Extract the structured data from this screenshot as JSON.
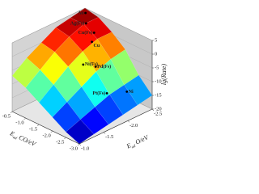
{
  "chart_data": {
    "type": "surface3d",
    "z_label": "lg(Rate)",
    "co_label": {
      "main": "E",
      "sub": "ad",
      "rest": " CO/eV"
    },
    "o_label": {
      "main": "E",
      "sub": "ad",
      "rest": " O/eV"
    },
    "co_lim": [
      -3.0,
      -0.5
    ],
    "o_lim": [
      -1.0,
      -2.5
    ],
    "zlim": [
      -20,
      5
    ],
    "co_ticks": [
      -0.5,
      {
        "value": -1,
        "label": "-1.0"
      },
      -1.5,
      {
        "value": -2,
        "label": "-2.0"
      },
      -2.5,
      {
        "value": -3,
        "label": "-3.0"
      }
    ],
    "o_ticks": [
      {
        "value": -1,
        "label": "-1.0"
      },
      -1.5,
      {
        "value": -2,
        "label": "-2.0"
      },
      -2.5
    ],
    "zticks": [
      5,
      0,
      -5,
      -10,
      -15,
      -20
    ],
    "co_grid": [
      -3.0,
      -2.5,
      -2.0,
      -1.5,
      -1.0,
      -0.5
    ],
    "o_grid": [
      -1.0,
      -1.3,
      -1.6,
      -1.9,
      -2.2,
      -2.5
    ],
    "z": [
      [
        -20,
        -18,
        -15,
        -12,
        -9,
        -7
      ],
      [
        -19,
        -16,
        -12,
        -8,
        -5,
        -3
      ],
      [
        -18,
        -14,
        -9,
        -4,
        -1,
        0
      ],
      [
        -17,
        -12,
        -6,
        -1,
        2,
        3
      ],
      [
        -16,
        -11,
        -4,
        1,
        4,
        4
      ],
      [
        -15,
        -10,
        -3,
        1,
        4,
        5
      ]
    ],
    "points": [
      {
        "label": "Au",
        "co": -0.7,
        "o": -2.4,
        "z": 5
      },
      {
        "label": "Ag(Fs)",
        "co": -0.9,
        "o": -2.3,
        "z": 3
      },
      {
        "label": "Cu(Fs)",
        "co": -1.2,
        "o": -2.3,
        "z": 1
      },
      {
        "label": "Cu",
        "co": -1.3,
        "o": -2.2,
        "z": -1
      },
      {
        "label": "Ni(Fs)",
        "co": -1.7,
        "o": -1.8,
        "z": -4
      },
      {
        "label": "Pd(Fs)",
        "co": -1.8,
        "o": -2.0,
        "z": -6
      },
      {
        "label": "Pt(Fs)",
        "co": -2.4,
        "o": -1.9,
        "z": -12
      },
      {
        "label": "Ni",
        "co": -2.6,
        "o": -2.2,
        "z": -13
      }
    ]
  }
}
